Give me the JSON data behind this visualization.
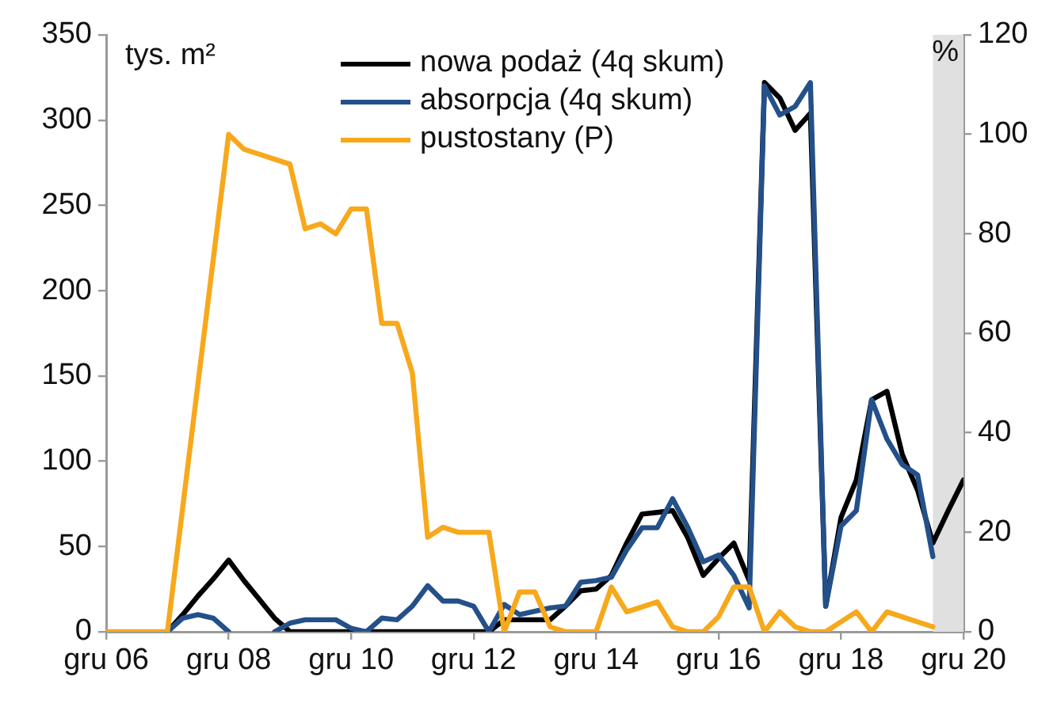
{
  "chart_data": {
    "type": "line",
    "ylabel": "tys. m²",
    "y2label": "%",
    "x": [
      "2006-12",
      "2007-03",
      "2007-06",
      "2007-09",
      "2007-12",
      "2008-03",
      "2008-06",
      "2008-09",
      "2008-12",
      "2009-03",
      "2009-06",
      "2009-09",
      "2009-12",
      "2010-03",
      "2010-06",
      "2010-09",
      "2010-12",
      "2011-03",
      "2011-06",
      "2011-09",
      "2011-12",
      "2012-03",
      "2012-06",
      "2012-09",
      "2012-12",
      "2013-03",
      "2013-06",
      "2013-09",
      "2013-12",
      "2014-03",
      "2014-06",
      "2014-09",
      "2014-12",
      "2015-03",
      "2015-06",
      "2015-09",
      "2015-12",
      "2016-03",
      "2016-06",
      "2016-09",
      "2016-12",
      "2017-03",
      "2017-06",
      "2017-09",
      "2017-12",
      "2018-03",
      "2018-06",
      "2018-09",
      "2018-12",
      "2019-03",
      "2019-06",
      "2019-09",
      "2019-12",
      "2020-03",
      "2020-06",
      "2020-09",
      "2020-12"
    ],
    "series": [
      {
        "name": "nowa podaż (4q skum)",
        "color": "#000000",
        "values": [
          null,
          null,
          null,
          null,
          0,
          10,
          21,
          31,
          42,
          30,
          19,
          8,
          0,
          0,
          0,
          0,
          0,
          0,
          0,
          0,
          0,
          0,
          0,
          0,
          0,
          0,
          7,
          7,
          7,
          7,
          15,
          24,
          25,
          33,
          52,
          69,
          70,
          71,
          55,
          33,
          43,
          52,
          30,
          322,
          313,
          294,
          304,
          15,
          67,
          89,
          136,
          141,
          104,
          83,
          52,
          71,
          89
        ]
      },
      {
        "name": "absorpcja (4q skum)",
        "color": "#24508a",
        "values": [
          null,
          null,
          null,
          null,
          0,
          8,
          10,
          8,
          0,
          null,
          null,
          0,
          5,
          7,
          7,
          7,
          2,
          0,
          8,
          7,
          15,
          27,
          18,
          18,
          15,
          0,
          16,
          10,
          12,
          14,
          15,
          29,
          30,
          32,
          48,
          61,
          61,
          78,
          61,
          41,
          45,
          33,
          14,
          320,
          303,
          308,
          322,
          15,
          62,
          71,
          136,
          113,
          98,
          92,
          44,
          null,
          null
        ]
      },
      {
        "name": "pustostany (P)",
        "color": "#f7a81b",
        "axis": "y2",
        "values": [
          0,
          0,
          0,
          0,
          0,
          25,
          50,
          75,
          100,
          97,
          96,
          95,
          94,
          81,
          82,
          80,
          85,
          85,
          62,
          62,
          52,
          19,
          21,
          20,
          20,
          20,
          0,
          8,
          8,
          1,
          0,
          0,
          0,
          9,
          4,
          5,
          6,
          1,
          0,
          0,
          3,
          9,
          9,
          0,
          4,
          1,
          0,
          0,
          2,
          4,
          0,
          4,
          3,
          2,
          1,
          null,
          null
        ]
      }
    ],
    "xlim": [
      "2006-12",
      "2020-12"
    ],
    "xticks": [
      {
        "value": "2006-12",
        "label": "gru 06"
      },
      {
        "value": "2008-12",
        "label": "gru 08"
      },
      {
        "value": "2010-12",
        "label": "gru 10"
      },
      {
        "value": "2012-12",
        "label": "gru 12"
      },
      {
        "value": "2014-12",
        "label": "gru 14"
      },
      {
        "value": "2016-12",
        "label": "gru 16"
      },
      {
        "value": "2018-12",
        "label": "gru 18"
      },
      {
        "value": "2020-12",
        "label": "gru 20"
      }
    ],
    "ylim": [
      0,
      350
    ],
    "yticks": [
      0,
      50,
      100,
      150,
      200,
      250,
      300,
      350
    ],
    "y2lim": [
      0,
      120
    ],
    "y2ticks": [
      0,
      20,
      40,
      60,
      80,
      100,
      120
    ],
    "bands": [
      {
        "axis": "x",
        "from": "2020-06",
        "to": "2020-12",
        "color": "#e0e0e0"
      }
    ],
    "grid": false,
    "legend": "top",
    "marker": "none",
    "line_style": "solid"
  }
}
